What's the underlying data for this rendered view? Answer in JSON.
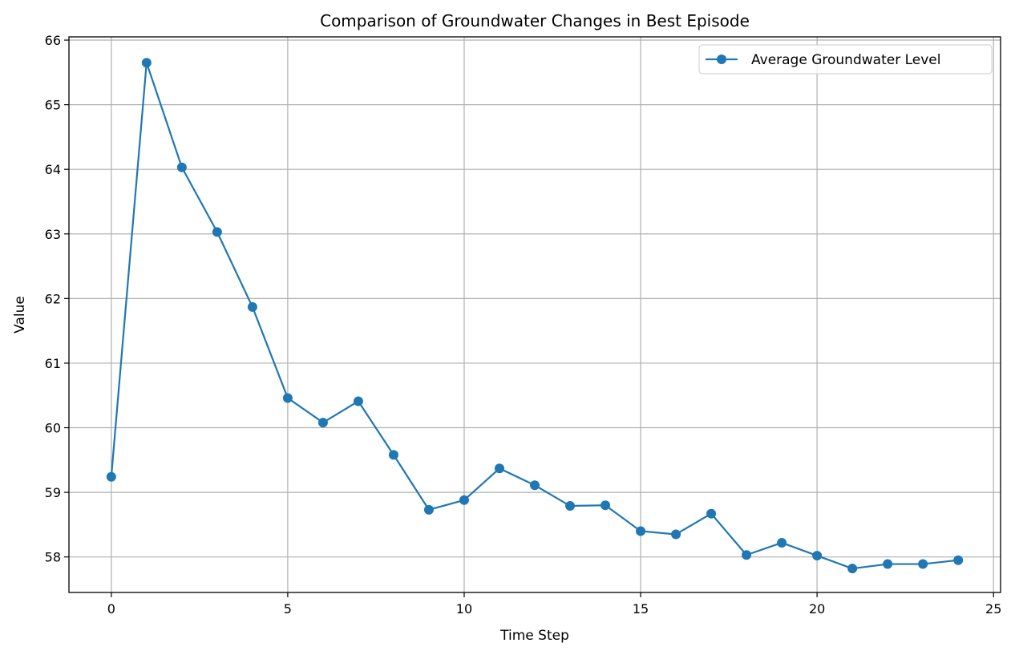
{
  "chart_data": {
    "type": "line",
    "title": "Comparison of Groundwater Changes in Best Episode",
    "xlabel": "Time Step",
    "ylabel": "Value",
    "xlim": [
      -1.2,
      25.2
    ],
    "ylim": [
      57.45,
      66.05
    ],
    "xticks": [
      0,
      5,
      10,
      15,
      20,
      25
    ],
    "yticks": [
      58,
      59,
      60,
      61,
      62,
      63,
      64,
      65,
      66
    ],
    "grid": true,
    "legend_position": "top-right",
    "colors": {
      "series": "#1f77b4",
      "grid": "#b0b0b0",
      "axes": "#000000"
    },
    "series": [
      {
        "name": "Average Groundwater Level",
        "marker": "circle",
        "x": [
          0,
          1,
          2,
          3,
          4,
          5,
          6,
          7,
          8,
          9,
          10,
          11,
          12,
          13,
          14,
          15,
          16,
          17,
          18,
          19,
          20,
          21,
          22,
          23,
          24
        ],
        "y": [
          59.24,
          65.65,
          64.03,
          63.03,
          61.87,
          60.46,
          60.08,
          60.41,
          59.58,
          58.73,
          58.88,
          59.37,
          59.11,
          58.79,
          58.8,
          58.4,
          58.35,
          58.67,
          58.03,
          58.22,
          58.02,
          57.82,
          57.89,
          57.89,
          57.95
        ]
      }
    ]
  }
}
